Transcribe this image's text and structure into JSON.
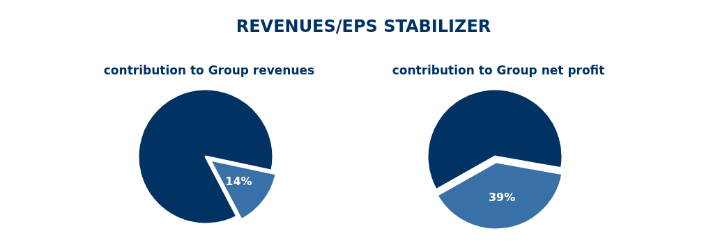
{
  "chart_data": [
    {
      "type": "pie",
      "title": "REVENUES/EPS STABILIZER",
      "subtitle": "contribution to Group revenues",
      "categories": [
        null,
        null
      ],
      "values": [
        14,
        86
      ],
      "colors": [
        "#3a70a8",
        "#003263"
      ],
      "value_labels": [
        "14%",
        null
      ]
    },
    {
      "type": "pie",
      "title": "contribution to Group net profit",
      "categories": [
        null,
        null
      ],
      "values": [
        39,
        61
      ],
      "colors": [
        "#3a70a8",
        "#003263"
      ],
      "value_labels": [
        "39%",
        null
      ]
    }
  ]
}
